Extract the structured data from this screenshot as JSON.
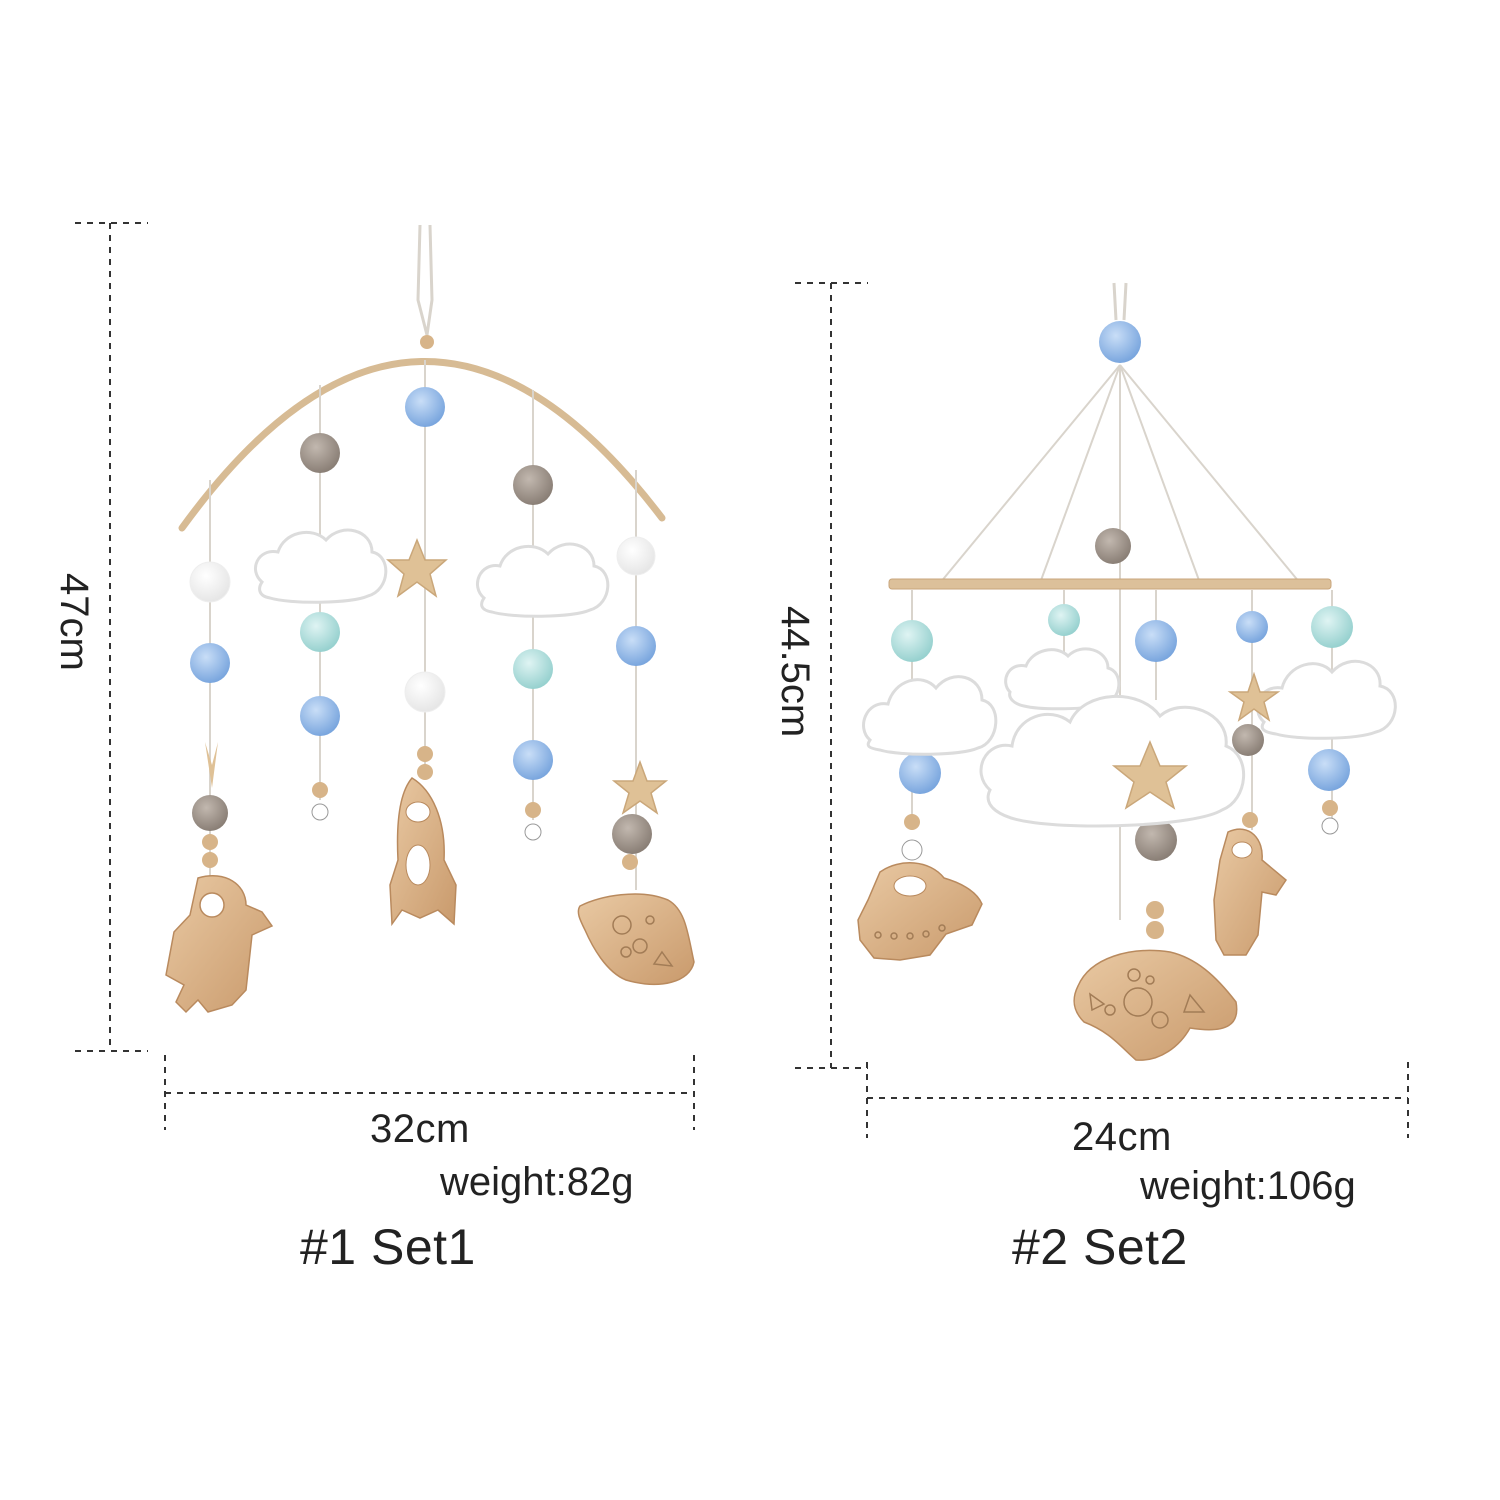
{
  "sets": [
    {
      "height_label": "47cm",
      "width_label": "32cm",
      "weight_label": "weight:82g",
      "name": "#1 Set1"
    },
    {
      "height_label": "44.5cm",
      "width_label": "24cm",
      "weight_label": "weight:106g",
      "name": "#2 Set2"
    }
  ],
  "colors": {
    "wood": "#d9b48c",
    "wood_dark": "#b98a5e",
    "felt_blue": "#8fb6e6",
    "felt_mint": "#a9dcdc",
    "felt_grey": "#9b9088",
    "felt_white": "#ffffff",
    "dashed_line": "#333333"
  }
}
